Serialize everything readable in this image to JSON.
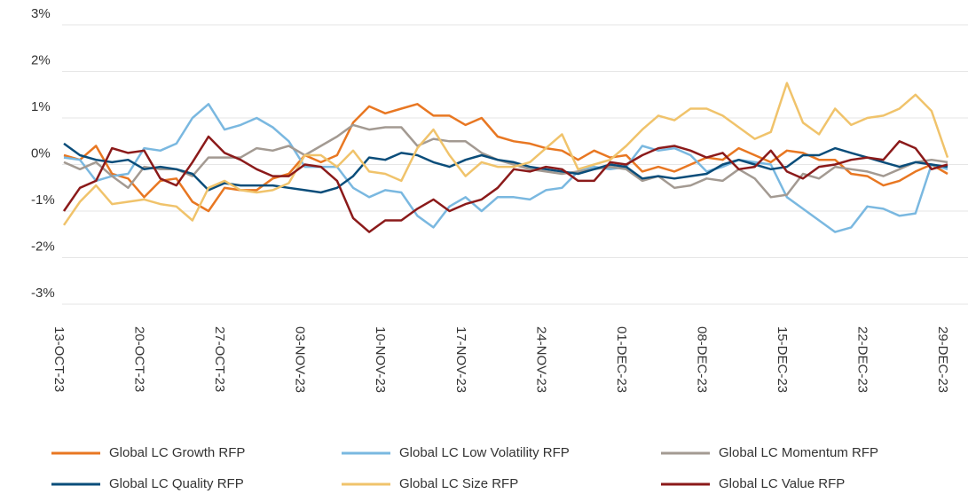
{
  "chart_data": {
    "type": "line",
    "categories": [
      "13-OCT-23",
      null,
      null,
      null,
      null,
      "20-OCT-23",
      null,
      null,
      null,
      null,
      "27-OCT-23",
      null,
      null,
      null,
      null,
      "03-NOV-23",
      null,
      null,
      null,
      null,
      "10-NOV-23",
      null,
      null,
      null,
      null,
      "17-NOV-23",
      null,
      null,
      null,
      null,
      "24-NOV-23",
      null,
      null,
      null,
      null,
      "01-DEC-23",
      null,
      null,
      null,
      null,
      "08-DEC-23",
      null,
      null,
      null,
      null,
      "15-DEC-23",
      null,
      null,
      null,
      null,
      "22-DEC-23",
      null,
      null,
      null,
      null,
      "29-DEC-23"
    ],
    "series": [
      {
        "name": "Global LC Growth RFP",
        "color": "#e87722",
        "values": [
          0.2,
          0.1,
          0.4,
          -0.2,
          -0.3,
          -0.7,
          -0.35,
          -0.3,
          -0.8,
          -1.0,
          -0.5,
          -0.55,
          -0.55,
          -0.3,
          -0.2,
          0.2,
          0.05,
          0.2,
          0.9,
          1.25,
          1.1,
          1.2,
          1.3,
          1.05,
          1.05,
          0.85,
          1.0,
          0.6,
          0.5,
          0.45,
          0.35,
          0.3,
          0.1,
          0.3,
          0.15,
          0.2,
          -0.15,
          -0.05,
          -0.15,
          0.0,
          0.15,
          0.1,
          0.35,
          0.2,
          0.05,
          0.3,
          0.25,
          0.1,
          0.1,
          -0.2,
          -0.25,
          -0.45,
          -0.35,
          -0.15,
          0.0,
          -0.2
        ]
      },
      {
        "name": "Global LC Low Volatility RFP",
        "color": "#7ab8e0",
        "values": [
          0.15,
          0.1,
          -0.35,
          -0.25,
          -0.2,
          0.35,
          0.3,
          0.45,
          1.0,
          1.3,
          0.75,
          0.85,
          1.0,
          0.8,
          0.5,
          -0.05,
          -0.05,
          -0.05,
          -0.5,
          -0.7,
          -0.55,
          -0.6,
          -1.1,
          -1.35,
          -0.9,
          -0.7,
          -1.0,
          -0.7,
          -0.7,
          -0.75,
          -0.55,
          -0.5,
          -0.15,
          -0.05,
          -0.1,
          -0.05,
          0.4,
          0.3,
          0.35,
          0.2,
          -0.15,
          -0.05,
          0.1,
          0.05,
          0.0,
          -0.7,
          -0.95,
          -1.2,
          -1.45,
          -1.35,
          -0.9,
          -0.95,
          -1.1,
          -1.05,
          0.0,
          -0.1
        ]
      },
      {
        "name": "Global LC Momentum RFP",
        "color": "#a39a92",
        "values": [
          0.05,
          -0.1,
          0.05,
          -0.25,
          -0.5,
          -0.05,
          -0.1,
          -0.1,
          -0.25,
          0.15,
          0.15,
          0.15,
          0.35,
          0.3,
          0.4,
          0.2,
          0.4,
          0.6,
          0.85,
          0.75,
          0.8,
          0.8,
          0.4,
          0.55,
          0.5,
          0.5,
          0.25,
          0.1,
          0.0,
          -0.1,
          -0.15,
          -0.2,
          -0.15,
          -0.1,
          -0.05,
          -0.1,
          -0.35,
          -0.25,
          -0.5,
          -0.45,
          -0.3,
          -0.35,
          -0.1,
          -0.3,
          -0.7,
          -0.65,
          -0.2,
          -0.3,
          -0.05,
          -0.1,
          -0.15,
          -0.25,
          -0.1,
          0.05,
          0.1,
          0.05
        ]
      },
      {
        "name": "Global LC Quality RFP",
        "color": "#0a4d7a",
        "values": [
          0.45,
          0.2,
          0.1,
          0.05,
          0.1,
          -0.1,
          -0.05,
          -0.1,
          -0.2,
          -0.55,
          -0.4,
          -0.45,
          -0.45,
          -0.45,
          -0.5,
          -0.55,
          -0.6,
          -0.5,
          -0.25,
          0.15,
          0.1,
          0.25,
          0.2,
          0.05,
          -0.05,
          0.1,
          0.2,
          0.1,
          0.05,
          -0.05,
          -0.1,
          -0.15,
          -0.2,
          -0.1,
          0.0,
          -0.05,
          -0.3,
          -0.25,
          -0.3,
          -0.25,
          -0.2,
          0.0,
          0.1,
          0.0,
          -0.1,
          -0.05,
          0.2,
          0.2,
          0.35,
          0.25,
          0.15,
          0.05,
          -0.05,
          0.05,
          0.0,
          -0.05
        ]
      },
      {
        "name": "Global LC Size RFP",
        "color": "#f0c36b",
        "values": [
          -1.3,
          -0.8,
          -0.45,
          -0.85,
          -0.8,
          -0.75,
          -0.85,
          -0.9,
          -1.2,
          -0.5,
          -0.35,
          -0.55,
          -0.6,
          -0.55,
          -0.4,
          0.2,
          0.2,
          -0.05,
          0.3,
          -0.15,
          -0.2,
          -0.35,
          0.35,
          0.75,
          0.2,
          -0.25,
          0.05,
          -0.05,
          -0.05,
          0.05,
          0.35,
          0.65,
          -0.1,
          0.0,
          0.1,
          0.4,
          0.75,
          1.05,
          0.95,
          1.2,
          1.2,
          1.05,
          0.8,
          0.55,
          0.7,
          1.75,
          0.9,
          0.65,
          1.2,
          0.85,
          1.0,
          1.05,
          1.2,
          1.5,
          1.15,
          0.15
        ]
      },
      {
        "name": "Global LC Value RFP",
        "color": "#8b1a1a",
        "values": [
          -1.0,
          -0.5,
          -0.35,
          0.35,
          0.25,
          0.3,
          -0.3,
          -0.45,
          0.05,
          0.6,
          0.25,
          0.1,
          -0.1,
          -0.25,
          -0.25,
          0.0,
          -0.05,
          -0.35,
          -1.15,
          -1.45,
          -1.2,
          -1.2,
          -0.95,
          -0.75,
          -1.0,
          -0.85,
          -0.75,
          -0.5,
          -0.1,
          -0.15,
          -0.05,
          -0.1,
          -0.35,
          -0.35,
          0.05,
          0.0,
          0.2,
          0.35,
          0.4,
          0.3,
          0.15,
          0.25,
          -0.1,
          -0.05,
          0.3,
          -0.15,
          -0.3,
          -0.05,
          0.0,
          0.1,
          0.15,
          0.1,
          0.5,
          0.35,
          -0.1,
          0.0
        ]
      }
    ],
    "ylim": [
      -3,
      3
    ],
    "yticks": [
      {
        "value": -3,
        "label": "-3%"
      },
      {
        "value": -2,
        "label": "-2%"
      },
      {
        "value": -1,
        "label": "-1%"
      },
      {
        "value": 0,
        "label": "0%"
      },
      {
        "value": 1,
        "label": "1%"
      },
      {
        "value": 2,
        "label": "2%"
      },
      {
        "value": 3,
        "label": "3%"
      }
    ],
    "grid": true
  }
}
